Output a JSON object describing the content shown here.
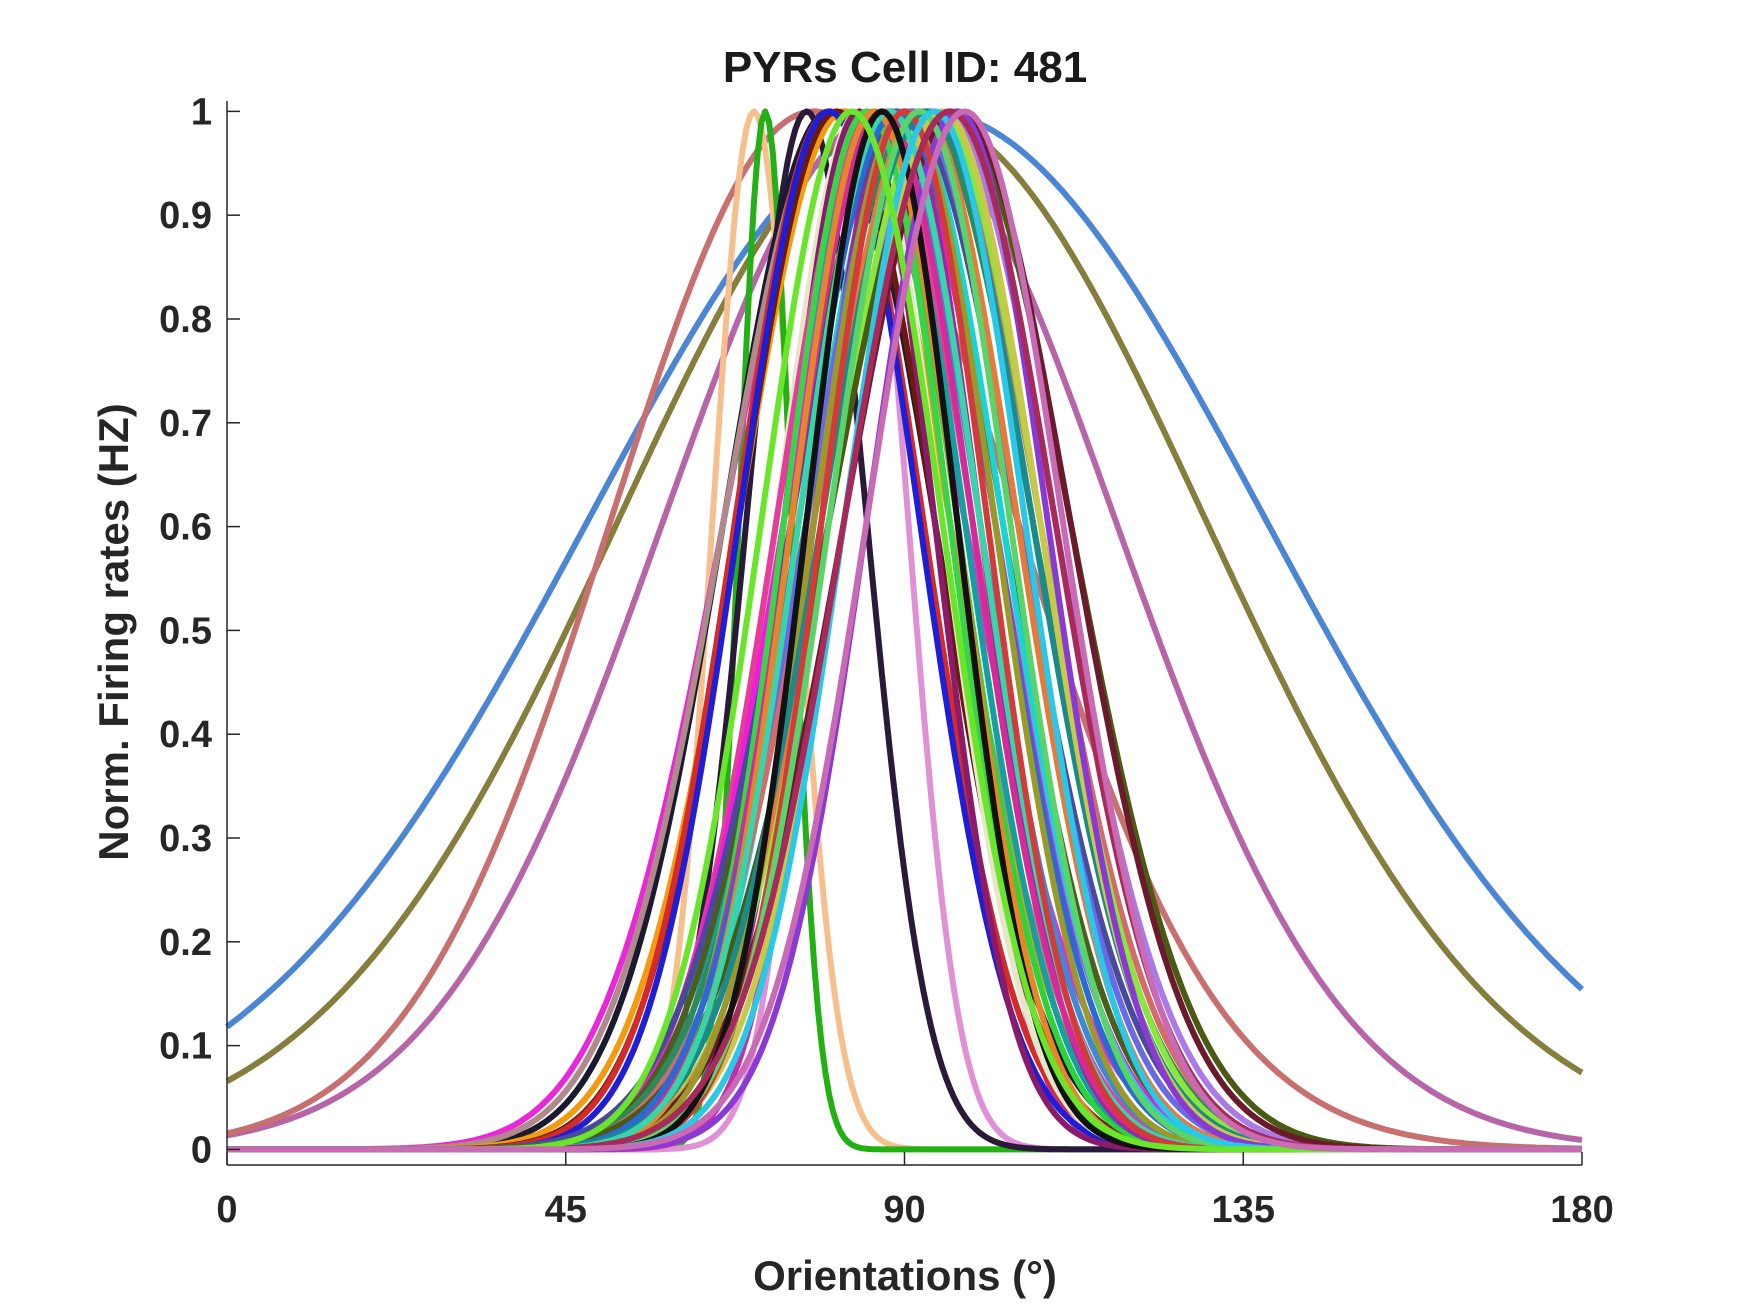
{
  "chart_data": {
    "type": "line",
    "title": "PYRs  Cell ID: 481",
    "xlabel": "Orientations (°)",
    "ylabel": "Norm. Firing rates (HZ)",
    "xlim": [
      0,
      180
    ],
    "ylim": [
      -0.015,
      1.01
    ],
    "xticks": [
      0,
      45,
      90,
      135,
      180
    ],
    "yticks": [
      0,
      0.1,
      0.2,
      0.3,
      0.4,
      0.5,
      0.6,
      0.7,
      0.8,
      0.9,
      1
    ],
    "ytick_labels": [
      "0",
      "0.1",
      "0.2",
      "0.3",
      "0.4",
      "0.5",
      "0.6",
      "0.7",
      "0.8",
      "0.9",
      "1"
    ],
    "grid": false,
    "legend": "none",
    "curve_model": "gaussian tuning curve y = exp(-(x - mu)^2 / (2 * sigma^2)), normalized peak 1",
    "series": [
      {
        "color": "#4a86d4",
        "mu": 93,
        "sigma": 45
      },
      {
        "color": "#857e3c",
        "mu": 91,
        "sigma": 39
      },
      {
        "color": "#b565a8",
        "mu": 88,
        "sigma": 30
      },
      {
        "color": "#c87070",
        "mu": 78,
        "sigma": 27
      },
      {
        "color": "#f5c08e",
        "mu": 70,
        "sigma": 5.5
      },
      {
        "color": "#22b014",
        "mu": 71.5,
        "sigma": 3.5
      },
      {
        "color": "#e090d5",
        "mu": 84,
        "sigma": 6.5
      },
      {
        "color": "#c42fa8",
        "mu": 88,
        "sigma": 9
      },
      {
        "color": "#2a1a3a",
        "mu": 77,
        "sigma": 8
      },
      {
        "color": "#ea28d8",
        "mu": 82,
        "sigma": 16
      },
      {
        "color": "#1a1a2e",
        "mu": 80,
        "sigma": 14
      },
      {
        "color": "#b08a8a",
        "mu": 81,
        "sigma": 15
      },
      {
        "color": "#f39a0e",
        "mu": 82,
        "sigma": 14
      },
      {
        "color": "#6b1a0e",
        "mu": 81,
        "sigma": 13
      },
      {
        "color": "#d42a2a",
        "mu": 80,
        "sigma": 12.5
      },
      {
        "color": "#1e1ed8",
        "mu": 80,
        "sigma": 12
      },
      {
        "color": "#2ad43a",
        "mu": 85,
        "sigma": 12
      },
      {
        "color": "#e6e6c8",
        "mu": 84,
        "sigma": 11
      },
      {
        "color": "#14a0a0",
        "mu": 86,
        "sigma": 12
      },
      {
        "color": "#8a1a6a",
        "mu": 84,
        "sigma": 10
      },
      {
        "color": "#e63c9a",
        "mu": 86,
        "sigma": 13
      },
      {
        "color": "#a8d04a",
        "mu": 87,
        "sigma": 12
      },
      {
        "color": "#3a8ad4",
        "mu": 87,
        "sigma": 13
      },
      {
        "color": "#4b5e1e",
        "mu": 89,
        "sigma": 14
      },
      {
        "color": "#f01ae0",
        "mu": 88,
        "sigma": 14
      },
      {
        "color": "#1ad4d4",
        "mu": 90,
        "sigma": 13
      },
      {
        "color": "#9a2a9a",
        "mu": 89,
        "sigma": 11
      },
      {
        "color": "#c8e62a",
        "mu": 91,
        "sigma": 14
      },
      {
        "color": "#4a4a9a",
        "mu": 90,
        "sigma": 15
      },
      {
        "color": "#2e8a5a",
        "mu": 92,
        "sigma": 15
      },
      {
        "color": "#6a6ae6",
        "mu": 91,
        "sigma": 14
      },
      {
        "color": "#d46a6a",
        "mu": 93,
        "sigma": 15
      },
      {
        "color": "#aa7ae6",
        "mu": 95,
        "sigma": 15
      },
      {
        "color": "#8ae63a",
        "mu": 94,
        "sigma": 14
      },
      {
        "color": "#4a5a12",
        "mu": 96,
        "sigma": 16
      },
      {
        "color": "#e67a3a",
        "mu": 92,
        "sigma": 13
      },
      {
        "color": "#6a1a2a",
        "mu": 97,
        "sigma": 15
      },
      {
        "color": "#3ad44a",
        "mu": 85,
        "sigma": 11
      },
      {
        "color": "#d42a9a",
        "mu": 87,
        "sigma": 12
      },
      {
        "color": "#2a6ad4",
        "mu": 89,
        "sigma": 13
      },
      {
        "color": "#9a9a2a",
        "mu": 90,
        "sigma": 12
      },
      {
        "color": "#e6862a",
        "mu": 86,
        "sigma": 11
      },
      {
        "color": "#1a8a8a",
        "mu": 93,
        "sigma": 14
      },
      {
        "color": "#c8c84a",
        "mu": 95,
        "sigma": 13
      },
      {
        "color": "#8a3ad4",
        "mu": 97,
        "sigma": 12
      },
      {
        "color": "#3ad4aa",
        "mu": 88,
        "sigma": 12
      },
      {
        "color": "#d43a3a",
        "mu": 90,
        "sigma": 11
      },
      {
        "color": "#5ad46a",
        "mu": 92,
        "sigma": 12
      },
      {
        "color": "#111111",
        "mu": 87,
        "sigma": 10
      },
      {
        "color": "#2ac8e6",
        "mu": 94,
        "sigma": 12
      },
      {
        "color": "#a82a5a",
        "mu": 96,
        "sigma": 14
      },
      {
        "color": "#6ae62a",
        "mu": 83,
        "sigma": 12
      },
      {
        "color": "#c86ab4",
        "mu": 98,
        "sigma": 13
      }
    ]
  }
}
